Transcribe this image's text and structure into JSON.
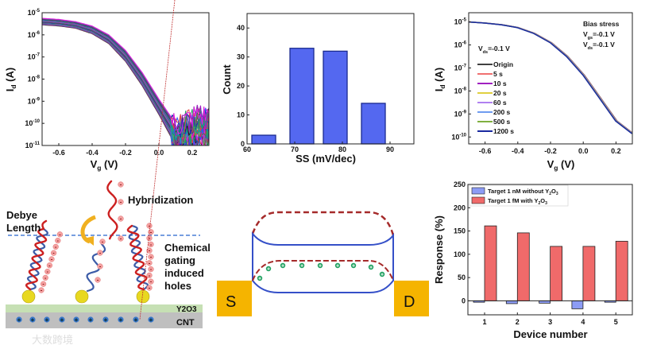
{
  "chart_data": [
    {
      "type": "line",
      "panel": "transfer-curves-many-devices",
      "xlabel": {
        "main": "V",
        "sub": "g",
        "unit": " (V)"
      },
      "ylabel": {
        "main": "I",
        "sub": "d",
        "unit": " (A)"
      },
      "yscale": "log",
      "xlim": [
        -0.7,
        0.3
      ],
      "ylim_log10": [
        -11,
        -5
      ],
      "xticks": [
        "-0.6",
        "-0.4",
        "-0.2",
        "0.0",
        "0.2"
      ],
      "xtick_values": [
        -0.6,
        -0.4,
        -0.2,
        0.0,
        0.2
      ],
      "ytick_exponents": [
        "-5",
        "-6",
        "-7",
        "-8",
        "-9",
        "-10",
        "-11"
      ],
      "x": [
        -0.7,
        -0.6,
        -0.5,
        -0.4,
        -0.3,
        -0.2,
        -0.1,
        0.0,
        0.1,
        0.15,
        0.2,
        0.3
      ],
      "envelope_upper_log10": [
        -5.25,
        -5.3,
        -5.4,
        -5.6,
        -6.0,
        -6.7,
        -7.7,
        -8.9,
        -10.0,
        -9.8,
        -9.6,
        -9.5
      ],
      "envelope_lower_log10": [
        -5.55,
        -5.6,
        -5.7,
        -5.95,
        -6.4,
        -7.2,
        -8.3,
        -9.6,
        -11.0,
        -11.0,
        -10.8,
        -10.5
      ],
      "curve_count": 30,
      "colors": [
        "#1a1a1a",
        "#e04040",
        "#2030c0",
        "#20a060",
        "#a020c0",
        "#e020e0",
        "#2090d0",
        "#606060",
        "#50b050",
        "#802080",
        "#3050ff",
        "#00a0a0"
      ]
    },
    {
      "type": "bar",
      "panel": "ss-histogram",
      "xlabel": "SS (mV/dec)",
      "ylabel": "Count",
      "xlim": [
        60,
        95
      ],
      "ylim": [
        0,
        45
      ],
      "xticks": [
        "60",
        "70",
        "80",
        "90"
      ],
      "xtick_values": [
        60,
        70,
        80,
        90
      ],
      "yticks": [
        "0",
        "10",
        "20",
        "30",
        "40"
      ],
      "ytick_values": [
        0,
        10,
        20,
        30,
        40
      ],
      "bins": [
        [
          61,
          66
        ],
        [
          69,
          74
        ],
        [
          76,
          81
        ],
        [
          84,
          89
        ]
      ],
      "values": [
        3,
        33,
        32,
        14
      ],
      "color": "#5468f0"
    },
    {
      "type": "line",
      "panel": "bias-stress",
      "xlabel": {
        "main": "V",
        "sub": "g",
        "unit": " (V)"
      },
      "ylabel": {
        "main": "I",
        "sub": "d",
        "unit": " (A)"
      },
      "yscale": "log",
      "xlim": [
        -0.7,
        0.3
      ],
      "ylim_log10": [
        -10.3,
        -4.6
      ],
      "xticks": [
        "-0.6",
        "-0.4",
        "-0.2",
        "0.0",
        "0.2"
      ],
      "xtick_values": [
        -0.6,
        -0.4,
        -0.2,
        0.0,
        0.2
      ],
      "ytick_exponents": [
        "-5",
        "-6",
        "-7",
        "-8",
        "-9",
        "-10"
      ],
      "x": [
        -0.7,
        -0.6,
        -0.5,
        -0.4,
        -0.3,
        -0.2,
        -0.1,
        0.0,
        0.1,
        0.2,
        0.3
      ],
      "y_log10": [
        -5.0,
        -5.05,
        -5.12,
        -5.25,
        -5.5,
        -5.9,
        -6.5,
        -7.3,
        -8.3,
        -9.3,
        -9.85
      ],
      "series": [
        {
          "name": "Origin",
          "color": "#404040",
          "shift": 0.006
        },
        {
          "name": "5 s",
          "color": "#f07070",
          "shift": 0.004
        },
        {
          "name": "10 s",
          "color": "#a020c0",
          "shift": 0.003
        },
        {
          "name": "20 s",
          "color": "#e0d040",
          "shift": 0.002
        },
        {
          "name": "60 s",
          "color": "#b080f0",
          "shift": 0.001
        },
        {
          "name": "200 s",
          "color": "#6f9cf0",
          "shift": 0.0
        },
        {
          "name": "500 s",
          "color": "#80b040",
          "shift": -0.001
        },
        {
          "name": "1200 s",
          "color": "#1a2aa0",
          "shift": -0.003
        }
      ],
      "annotation_left": {
        "main": "V",
        "sub": "ds",
        "rest": "=-0.1 V"
      },
      "annotation_title": "Bias stress",
      "annotation_vgs": {
        "main": "V",
        "sub": "gs",
        "rest": "=-0.1 V"
      },
      "annotation_vds": {
        "main": "V",
        "sub": "ds",
        "rest": "=-0.1 V"
      }
    },
    {
      "type": "bar",
      "panel": "device-response",
      "xlabel": "Device number",
      "ylabel": "Response (%)",
      "ylim": [
        -30,
        250
      ],
      "categories": [
        "1",
        "2",
        "3",
        "4",
        "5"
      ],
      "yticks": [
        "0",
        "50",
        "100",
        "150",
        "200",
        "250"
      ],
      "ytick_values": [
        0,
        50,
        100,
        150,
        200,
        250
      ],
      "series": [
        {
          "name": "Target  1 nM without Y",
          "sub1": "2",
          "mid": "O",
          "sub2": "3",
          "color": "#8c9cf5",
          "values": [
            -3,
            -6,
            -5,
            -17,
            -3
          ]
        },
        {
          "name": "Target  1 fM with Y",
          "sub1": "2",
          "mid": "O",
          "sub2": "3",
          "color": "#f06a6a",
          "values": [
            161,
            146,
            117,
            117,
            128
          ]
        }
      ],
      "legend": "top-left"
    }
  ],
  "diagram_left": {
    "debye_1": "Debye",
    "debye_2": "Length",
    "hybridization": "Hybridization",
    "chem_1": "Chemical",
    "chem_2": "gating",
    "chem_3": "induced",
    "chem_4": "holes",
    "oxide_label": "Y2O3",
    "cnt_label": "CNT",
    "plus": "+",
    "minus": "-",
    "watermark": "大数跨境"
  },
  "diagram_middle": {
    "source_label": "S",
    "drain_label": "D"
  }
}
